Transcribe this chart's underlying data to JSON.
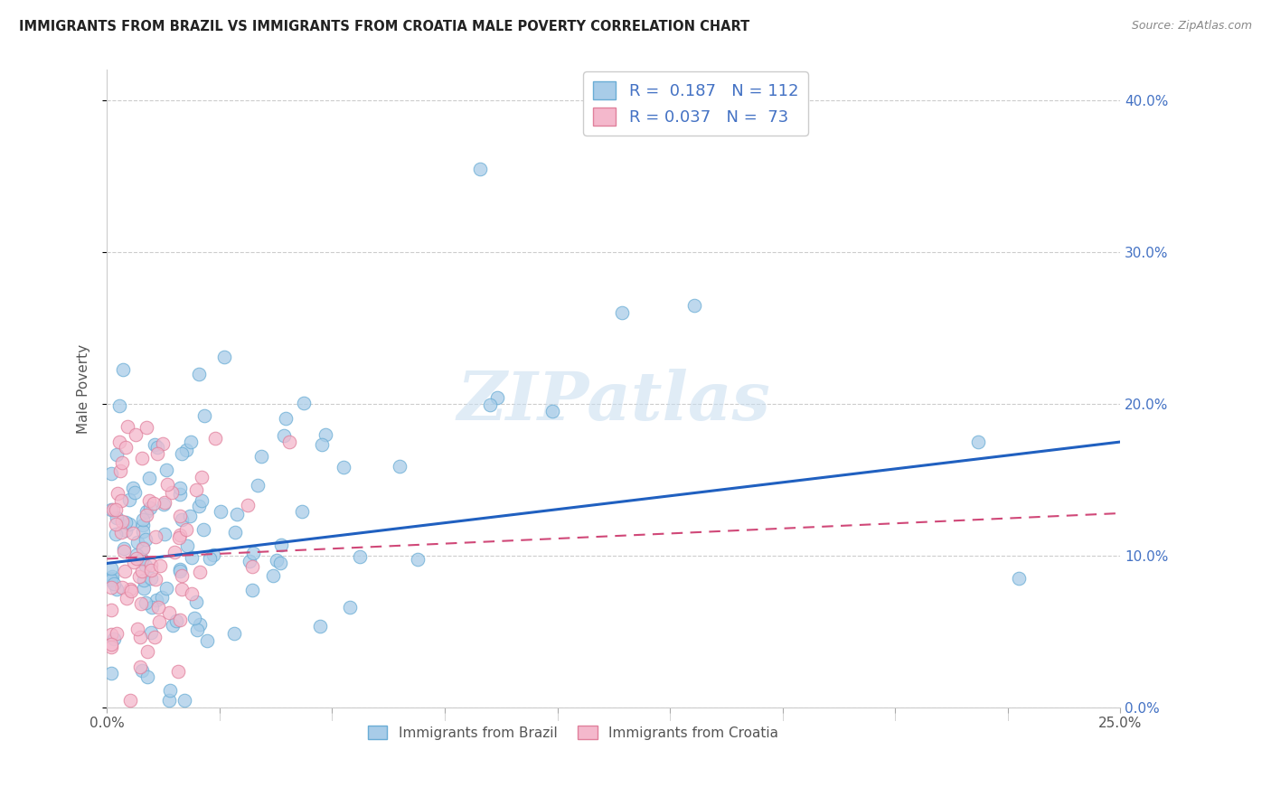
{
  "title": "IMMIGRANTS FROM BRAZIL VS IMMIGRANTS FROM CROATIA MALE POVERTY CORRELATION CHART",
  "source": "Source: ZipAtlas.com",
  "xlim": [
    0.0,
    0.25
  ],
  "ylim": [
    0.0,
    0.42
  ],
  "ylabel": "Male Poverty",
  "brazil_color": "#a8cce8",
  "brazil_edge": "#6aadd5",
  "croatia_color": "#f4b8cc",
  "croatia_edge": "#e0809c",
  "brazil_R": 0.187,
  "brazil_N": 112,
  "croatia_R": 0.037,
  "croatia_N": 73,
  "brazil_line_color": "#2060c0",
  "croatia_line_color": "#d04878",
  "legend_label_brazil": "Immigrants from Brazil",
  "legend_label_croatia": "Immigrants from Croatia",
  "watermark": "ZIPatlas",
  "right_yticks": [
    0.0,
    0.1,
    0.2,
    0.3,
    0.4
  ],
  "brazil_seed": 10,
  "croatia_seed": 20
}
